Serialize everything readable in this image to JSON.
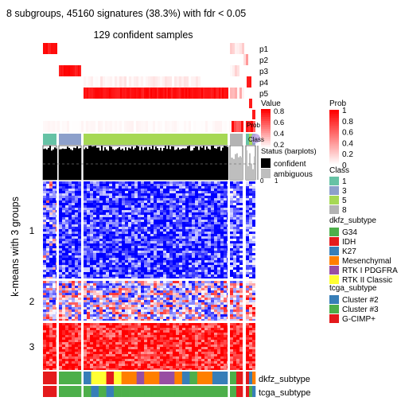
{
  "chart_data": {
    "type": "heatmap",
    "title": "8 subgroups, 45160 signatures (38.3%) with fdr < 0.05",
    "subtitle": "129 confident samples",
    "row_title": "k-means with 3 groups",
    "row_groups": [
      "1",
      "2",
      "3"
    ],
    "column_groups": [
      "1",
      "3",
      "5",
      "8"
    ],
    "top_tracks": [
      "p1",
      "p2",
      "p3",
      "p4",
      "p5",
      "Prob",
      "Class",
      "Status (barplots)"
    ],
    "bottom_tracks": [
      "dkfz_subtype",
      "tcga_subtype"
    ],
    "silhouette_axis_ticks": [
      "0",
      "1"
    ],
    "legends": {
      "value": {
        "title": "Value",
        "ticks": [
          "0.8",
          "0.6",
          "0.4",
          "0.2"
        ],
        "colors": [
          "#ffffff",
          "#ff0000"
        ],
        "overlapped_text": [
          "Prob",
          "Class",
          "Status (barplots)"
        ]
      },
      "prob": {
        "title": "Prob",
        "ticks": [
          "1",
          "0.8",
          "0.6",
          "0.4",
          "0.2",
          "0"
        ],
        "colors": [
          "#ffffff",
          "#ff0000"
        ]
      },
      "status": {
        "title": "Status (barplots)",
        "items": [
          {
            "label": "confident",
            "color": "#000000"
          },
          {
            "label": "ambiguous",
            "color": "#bebebe"
          }
        ]
      },
      "class": {
        "title": "Class",
        "items": [
          {
            "label": "1",
            "color": "#66c2a5"
          },
          {
            "label": "3",
            "color": "#8da0cb"
          },
          {
            "label": "5",
            "color": "#a6d854"
          },
          {
            "label": "8",
            "color": "#b3b3b3"
          }
        ]
      },
      "dkfz_subtype": {
        "title": "dkfz_subtype",
        "items": [
          {
            "label": "G34",
            "color": "#4daf4a"
          },
          {
            "label": "IDH",
            "color": "#e41a1c"
          },
          {
            "label": "K27",
            "color": "#377eb8"
          },
          {
            "label": "Mesenchymal",
            "color": "#ff7f00"
          },
          {
            "label": "RTK I PDGFRA",
            "color": "#984ea3"
          },
          {
            "label": "RTK II Classic",
            "color": "#ffff33"
          }
        ]
      },
      "tcga_subtype": {
        "title": "tcga_subtype",
        "items": [
          {
            "label": "Cluster #2",
            "color": "#377eb8"
          },
          {
            "label": "Cluster #3",
            "color": "#4daf4a"
          },
          {
            "label": "G-CIMP+",
            "color": "#e41a1c"
          }
        ]
      }
    },
    "heatmap_colors": {
      "low": "#0000ff",
      "mid": "#ffffff",
      "high": "#ff0000"
    }
  }
}
